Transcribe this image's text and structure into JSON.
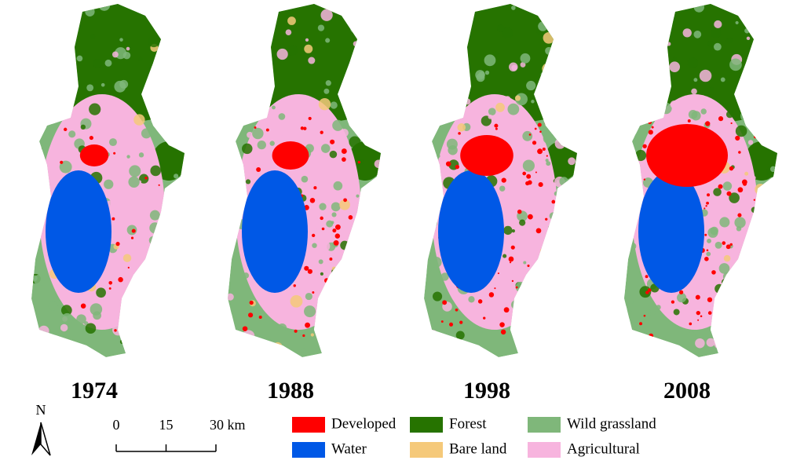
{
  "panels": [
    {
      "year": "1974"
    },
    {
      "year": "1988"
    },
    {
      "year": "1998"
    },
    {
      "year": "2008"
    }
  ],
  "legend": {
    "items": [
      {
        "label": "Developed",
        "color": "#ff0000"
      },
      {
        "label": "Forest",
        "color": "#267300"
      },
      {
        "label": "Wild grassland",
        "color": "#7fb77a"
      },
      {
        "label": "Water",
        "color": "#0058e6"
      },
      {
        "label": "Bare land",
        "color": "#f5c97a"
      },
      {
        "label": "Agricultural",
        "color": "#f7b4de"
      }
    ]
  },
  "north_arrow": {
    "label": "N"
  },
  "scale_bar": {
    "ticks": [
      0,
      15,
      {
        "value": 30,
        "label": "30 km"
      }
    ]
  }
}
